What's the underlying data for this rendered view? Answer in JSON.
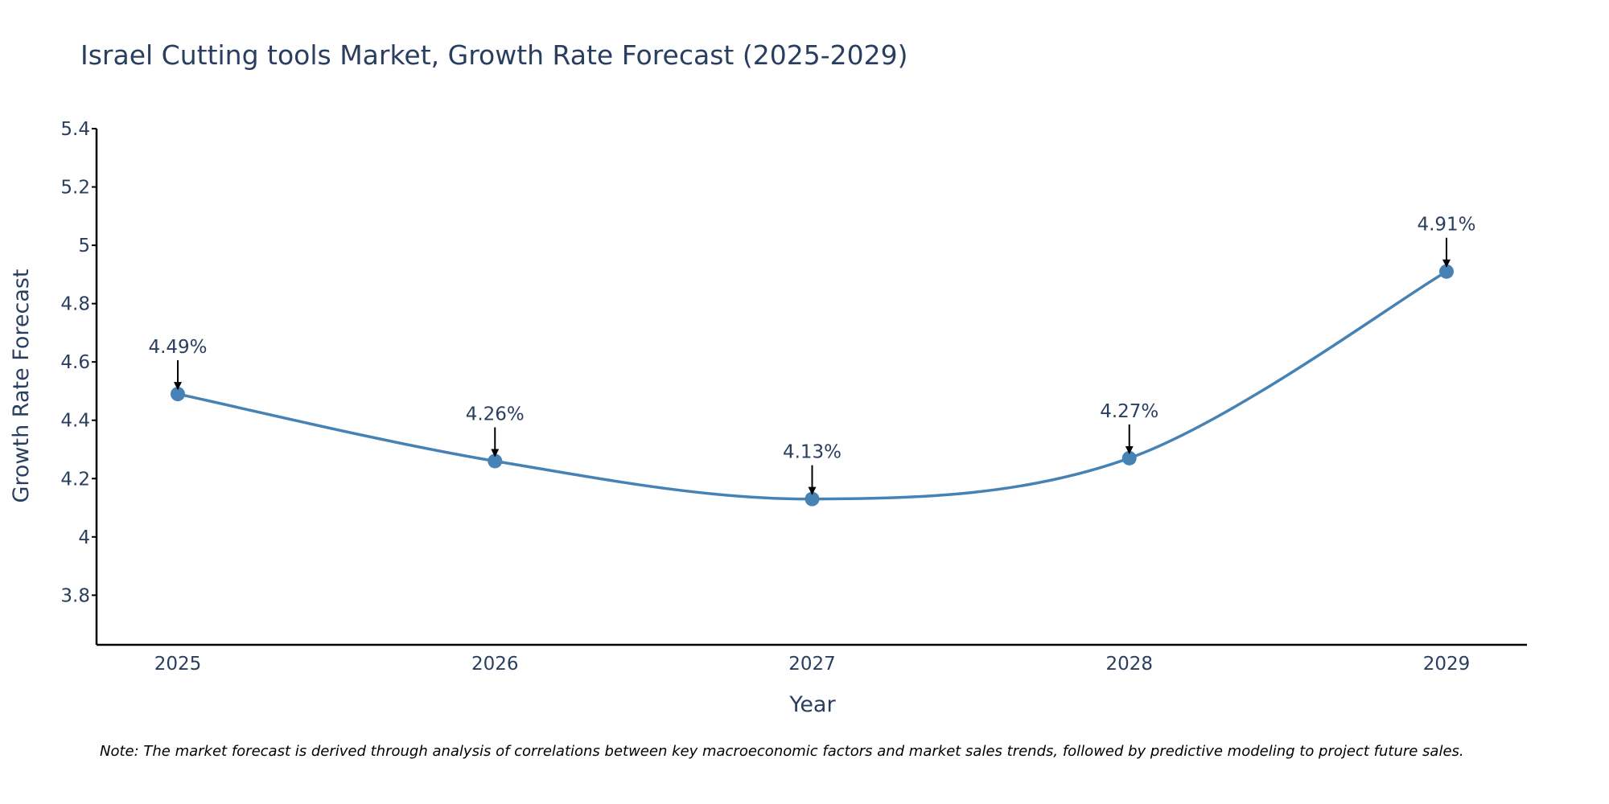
{
  "chart_data": {
    "type": "line",
    "title": "Israel Cutting tools Market, Growth Rate Forecast (2025-2029)",
    "xlabel": "Year",
    "ylabel": "Growth Rate Forecast",
    "categories": [
      "2025",
      "2026",
      "2027",
      "2028",
      "2029"
    ],
    "values": [
      4.49,
      4.26,
      4.13,
      4.27,
      4.91
    ],
    "annotations": [
      "4.49%",
      "4.26%",
      "4.13%",
      "4.27%",
      "4.91%"
    ],
    "ylim": [
      3.63,
      5.4
    ],
    "yticks": [
      3.8,
      4,
      4.2,
      4.4,
      4.6,
      4.8,
      5,
      5.2,
      5.4
    ],
    "ytick_labels": [
      "3.8",
      "4",
      "4.2",
      "4.4",
      "4.6",
      "4.8",
      "5",
      "5.2",
      "5.4"
    ],
    "line_shape": "spline",
    "grid": false,
    "colors": {
      "line": "#4682b4",
      "text": "#2a3f5f",
      "axis": "#000000"
    }
  },
  "note": "Note: The market forecast is derived through analysis of correlations between key macroeconomic factors and market sales trends, followed by predictive modeling to project future sales."
}
